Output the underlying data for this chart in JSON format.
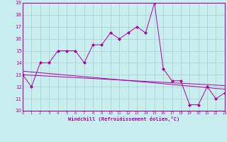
{
  "xlabel": "Windchill (Refroidissement éolien,°C)",
  "bg_color": "#c8eef0",
  "line_color": "#aa00aa",
  "grid_color": "#aacccc",
  "x_min": 0,
  "x_max": 23,
  "y_min": 10,
  "y_max": 19,
  "series1_y": [
    13,
    12,
    14,
    14,
    15,
    15,
    15,
    14,
    15.5,
    15.5,
    16.5,
    16,
    16.5,
    17,
    16.5,
    19,
    13.5,
    12.5,
    12.5,
    10.5,
    10.5,
    12,
    11,
    11.5
  ],
  "reg1": [
    13.3,
    11.8
  ],
  "reg2": [
    13.0,
    12.1
  ]
}
